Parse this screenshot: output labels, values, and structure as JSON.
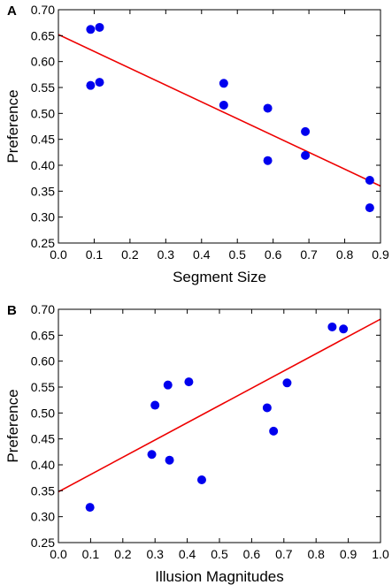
{
  "colors": {
    "points": "#0000ee",
    "fit_line": "#ee0000",
    "axes": "#000000"
  },
  "chart_data": [
    {
      "type": "scatter",
      "panel_label": "A",
      "xlabel": "Segment Size",
      "ylabel": "Preference",
      "xlim": [
        0.0,
        0.9
      ],
      "ylim": [
        0.25,
        0.7
      ],
      "x_ticks": [
        "0.0",
        "0.1",
        "0.2",
        "0.3",
        "0.4",
        "0.5",
        "0.6",
        "0.7",
        "0.8",
        "0.9"
      ],
      "y_ticks": [
        "0.25",
        "0.30",
        "0.35",
        "0.40",
        "0.45",
        "0.50",
        "0.55",
        "0.60",
        "0.65",
        "0.70"
      ],
      "grid": false,
      "points": [
        {
          "x": 0.09,
          "y": 0.662
        },
        {
          "x": 0.115,
          "y": 0.666
        },
        {
          "x": 0.09,
          "y": 0.554
        },
        {
          "x": 0.115,
          "y": 0.56
        },
        {
          "x": 0.462,
          "y": 0.558
        },
        {
          "x": 0.462,
          "y": 0.516
        },
        {
          "x": 0.585,
          "y": 0.51
        },
        {
          "x": 0.585,
          "y": 0.409
        },
        {
          "x": 0.69,
          "y": 0.465
        },
        {
          "x": 0.69,
          "y": 0.419
        },
        {
          "x": 0.87,
          "y": 0.371
        },
        {
          "x": 0.87,
          "y": 0.318
        }
      ],
      "fit_line": [
        {
          "x": 0.0,
          "y": 0.652
        },
        {
          "x": 0.9,
          "y": 0.36
        }
      ]
    },
    {
      "type": "scatter",
      "panel_label": "B",
      "xlabel": "Illusion Magnitudes",
      "ylabel": "Preference",
      "xlim": [
        0.0,
        1.0
      ],
      "ylim": [
        0.25,
        0.7
      ],
      "x_ticks": [
        "0.0",
        "0.1",
        "0.2",
        "0.3",
        "0.4",
        "0.5",
        "0.6",
        "0.7",
        "0.8",
        "0.9",
        "1.0"
      ],
      "y_ticks": [
        "0.25",
        "0.30",
        "0.35",
        "0.40",
        "0.45",
        "0.50",
        "0.55",
        "0.60",
        "0.65",
        "0.70"
      ],
      "grid": false,
      "points": [
        {
          "x": 0.098,
          "y": 0.318
        },
        {
          "x": 0.29,
          "y": 0.42
        },
        {
          "x": 0.3,
          "y": 0.515
        },
        {
          "x": 0.34,
          "y": 0.554
        },
        {
          "x": 0.345,
          "y": 0.409
        },
        {
          "x": 0.405,
          "y": 0.56
        },
        {
          "x": 0.445,
          "y": 0.371
        },
        {
          "x": 0.648,
          "y": 0.51
        },
        {
          "x": 0.668,
          "y": 0.465
        },
        {
          "x": 0.71,
          "y": 0.558
        },
        {
          "x": 0.85,
          "y": 0.666
        },
        {
          "x": 0.885,
          "y": 0.662
        }
      ],
      "fit_line": [
        {
          "x": 0.0,
          "y": 0.348
        },
        {
          "x": 1.0,
          "y": 0.681
        }
      ]
    }
  ]
}
